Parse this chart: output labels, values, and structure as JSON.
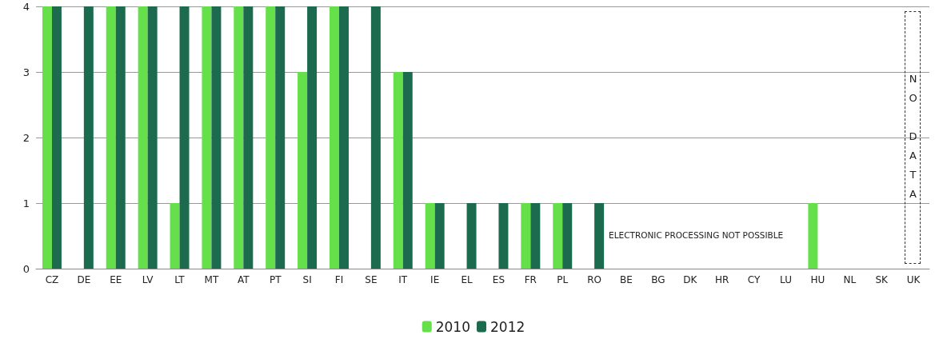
{
  "chart_data": {
    "type": "bar",
    "categories": [
      "CZ",
      "DE",
      "EE",
      "LV",
      "LT",
      "MT",
      "AT",
      "PT",
      "SI",
      "FI",
      "SE",
      "IT",
      "IE",
      "EL",
      "ES",
      "FR",
      "PL",
      "RO",
      "BE",
      "BG",
      "DK",
      "HR",
      "CY",
      "LU",
      "HU",
      "NL",
      "SK",
      "UK"
    ],
    "series": [
      {
        "name": "2010",
        "color": "#66e04a",
        "values": [
          4,
          0,
          4,
          4,
          1,
          4,
          4,
          4,
          3,
          4,
          0,
          3,
          1,
          0,
          0,
          1,
          1,
          0,
          0,
          0,
          0,
          0,
          0,
          0,
          1,
          0,
          0,
          null
        ]
      },
      {
        "name": "2012",
        "color": "#1c6b4f",
        "values": [
          4,
          4,
          4,
          4,
          4,
          4,
          4,
          4,
          4,
          4,
          4,
          3,
          1,
          1,
          1,
          1,
          1,
          1,
          0,
          0,
          0,
          0,
          0,
          0,
          0,
          0,
          0,
          null
        ]
      }
    ],
    "ylim": [
      0,
      4
    ],
    "yticks": [
      0,
      1,
      2,
      3,
      4
    ],
    "grid": "y",
    "legend": "bottom",
    "annotations": [
      "ELECTRONIC PROCESSING NOT POSSIBLE",
      "NO DATA"
    ]
  }
}
